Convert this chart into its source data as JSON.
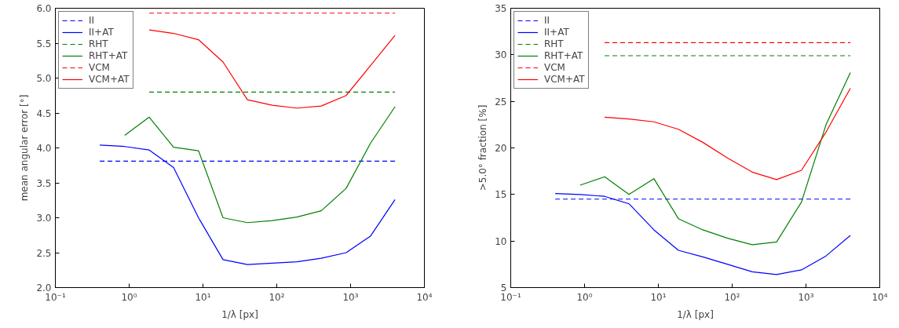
{
  "chart_data": [
    {
      "type": "line",
      "xlabel": "1/λ [px]",
      "ylabel": "mean angular error [°]",
      "log": "x",
      "grid": false,
      "legend": "top left",
      "x": [
        0.4,
        0.87,
        1.87,
        4.0,
        8.7,
        18.7,
        40,
        87,
        187,
        400,
        870,
        1870,
        4000
      ],
      "xlim": [
        0.1,
        10000
      ],
      "xticks": [
        {
          "value": 0.1,
          "label": "10⁻¹"
        },
        {
          "value": 1,
          "label": "10⁰"
        },
        {
          "value": 10,
          "label": "10¹"
        },
        {
          "value": 100,
          "label": "10²"
        },
        {
          "value": 1000,
          "label": "10³"
        },
        {
          "value": 10000,
          "label": "10⁴"
        }
      ],
      "ylim": [
        2.0,
        6.0
      ],
      "yticks": [
        {
          "value": 2.0,
          "label": "2.0"
        },
        {
          "value": 2.5,
          "label": "2.5"
        },
        {
          "value": 3.0,
          "label": "3.0"
        },
        {
          "value": 3.5,
          "label": "3.5"
        },
        {
          "value": 4.0,
          "label": "4.0"
        },
        {
          "value": 4.5,
          "label": "4.5"
        },
        {
          "value": 5.0,
          "label": "5.0"
        },
        {
          "value": 5.5,
          "label": "5.5"
        },
        {
          "value": 6.0,
          "label": "6.0"
        }
      ],
      "series": [
        {
          "name": "II",
          "color": "#0000ff",
          "line_style": "dashed",
          "values": [
            3.81,
            3.81,
            3.81,
            3.81,
            3.81,
            3.81,
            3.81,
            3.81,
            3.81,
            3.81,
            3.81,
            3.81,
            3.81
          ]
        },
        {
          "name": "II+AT",
          "color": "#0000ff",
          "line_style": "solid",
          "values": [
            4.04,
            4.02,
            3.97,
            3.72,
            3.0,
            2.4,
            2.33,
            2.35,
            2.37,
            2.42,
            2.5,
            2.74,
            3.26
          ]
        },
        {
          "name": "RHT",
          "color": "#008000",
          "line_style": "dashed",
          "values": [
            null,
            null,
            4.8,
            4.8,
            4.8,
            4.8,
            4.8,
            4.8,
            4.8,
            4.8,
            4.8,
            4.8,
            4.8
          ]
        },
        {
          "name": "RHT+AT",
          "color": "#008000",
          "line_style": "solid",
          "values": [
            null,
            4.18,
            4.44,
            4.01,
            3.96,
            3.0,
            2.93,
            2.96,
            3.01,
            3.1,
            3.42,
            4.07,
            4.59
          ]
        },
        {
          "name": "VCM",
          "color": "#ff0000",
          "line_style": "dashed",
          "values": [
            null,
            null,
            5.93,
            5.93,
            5.93,
            5.93,
            5.93,
            5.93,
            5.93,
            5.93,
            5.93,
            5.93,
            5.93
          ]
        },
        {
          "name": "VCM+AT",
          "color": "#ff0000",
          "line_style": "solid",
          "values": [
            null,
            null,
            5.69,
            5.64,
            5.55,
            5.23,
            4.69,
            4.61,
            4.57,
            4.6,
            4.75,
            5.18,
            5.61
          ]
        }
      ]
    },
    {
      "type": "line",
      "xlabel": "1/λ [px]",
      "ylabel": ">5.0° fraction [%]",
      "log": "x",
      "grid": false,
      "legend": "top left",
      "x": [
        0.4,
        0.87,
        1.87,
        4.0,
        8.7,
        18.7,
        40,
        87,
        187,
        400,
        870,
        1870,
        4000
      ],
      "xlim": [
        0.1,
        10000
      ],
      "xticks": [
        {
          "value": 0.1,
          "label": "10⁻¹"
        },
        {
          "value": 1,
          "label": "10⁰"
        },
        {
          "value": 10,
          "label": "10¹"
        },
        {
          "value": 100,
          "label": "10²"
        },
        {
          "value": 1000,
          "label": "10³"
        },
        {
          "value": 10000,
          "label": "10⁴"
        }
      ],
      "ylim": [
        5,
        35
      ],
      "yticks": [
        5,
        10,
        15,
        20,
        25,
        30,
        35
      ],
      "series": [
        {
          "name": "II",
          "color": "#0000ff",
          "line_style": "dashed",
          "values": [
            14.5,
            14.5,
            14.5,
            14.5,
            14.5,
            14.5,
            14.5,
            14.5,
            14.5,
            14.5,
            14.5,
            14.5,
            14.5
          ]
        },
        {
          "name": "II+AT",
          "color": "#0000ff",
          "line_style": "solid",
          "values": [
            15.1,
            15.0,
            14.8,
            14.0,
            11.2,
            9.0,
            8.3,
            7.5,
            6.7,
            6.4,
            6.9,
            8.4,
            10.6
          ]
        },
        {
          "name": "RHT",
          "color": "#008000",
          "line_style": "dashed",
          "values": [
            null,
            null,
            29.9,
            29.9,
            29.9,
            29.9,
            29.9,
            29.9,
            29.9,
            29.9,
            29.9,
            29.9,
            29.9
          ]
        },
        {
          "name": "RHT+AT",
          "color": "#008000",
          "line_style": "solid",
          "values": [
            null,
            16.0,
            16.9,
            15.0,
            16.7,
            12.4,
            11.2,
            10.3,
            9.6,
            9.9,
            14.2,
            22.5,
            28.1
          ]
        },
        {
          "name": "VCM",
          "color": "#ff0000",
          "line_style": "dashed",
          "values": [
            null,
            null,
            31.3,
            31.3,
            31.3,
            31.3,
            31.3,
            31.3,
            31.3,
            31.3,
            31.3,
            31.3,
            31.3
          ]
        },
        {
          "name": "VCM+AT",
          "color": "#ff0000",
          "line_style": "solid",
          "values": [
            null,
            null,
            23.3,
            23.1,
            22.8,
            22.0,
            20.6,
            18.9,
            17.4,
            16.6,
            17.6,
            21.7,
            26.4
          ]
        }
      ]
    }
  ]
}
